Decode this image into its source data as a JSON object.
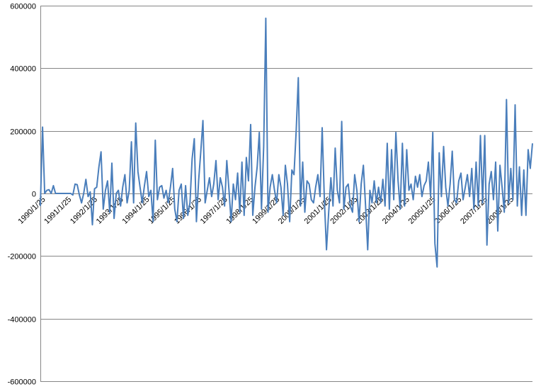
{
  "chart_data": {
    "type": "line",
    "title": "",
    "xlabel": "",
    "ylabel": "",
    "ylim": [
      -600000,
      600000
    ],
    "yticks": [
      600000,
      400000,
      200000,
      0,
      -200000,
      -400000,
      -600000
    ],
    "grid": true,
    "legend": "none",
    "line_color": "#4a7ebb",
    "x_tick_labels": [
      "1990/1/25",
      "1991/1/25",
      "1992/1/25",
      "1993/1/25",
      "1994/1/25",
      "1995/1/25",
      "1996/1/25",
      "1997/1/25",
      "1998/1/25",
      "1999/1/25",
      "2000/1/25",
      "2001/1/25",
      "2002/1/25",
      "2003/1/25",
      "2004/1/25",
      "2005/1/25",
      "2006/1/25",
      "2007/1/25",
      "2008/1/25"
    ],
    "series": [
      {
        "monthly_values_by_year": {
          "1990": [
            -40000,
            212000,
            0,
            10000,
            12000,
            0,
            25000,
            0,
            0,
            0,
            0,
            0
          ],
          "1991": [
            0,
            0,
            0,
            -5000,
            30000,
            28000,
            -5000,
            -30000,
            0,
            45000,
            -10000,
            5000
          ],
          "1992": [
            -100000,
            15000,
            20000,
            85000,
            133000,
            -50000,
            10000,
            40000,
            -60000,
            97000,
            -80000,
            0
          ],
          "1993": [
            10000,
            -40000,
            20000,
            60000,
            -30000,
            10000,
            165000,
            -30000,
            225000,
            70000,
            20000,
            -30000
          ],
          "1994": [
            25000,
            70000,
            -10000,
            10000,
            -90000,
            170000,
            -20000,
            20000,
            25000,
            -15000,
            10000,
            -30000
          ],
          "1995": [
            20000,
            80000,
            -50000,
            -90000,
            10000,
            30000,
            -80000,
            25000,
            -70000,
            -30000,
            110000,
            175000
          ],
          "1996": [
            -90000,
            40000,
            135000,
            233000,
            -30000,
            10000,
            50000,
            -10000,
            30000,
            105000,
            -20000,
            50000
          ],
          "1997": [
            20000,
            -40000,
            105000,
            10000,
            -90000,
            30000,
            -20000,
            65000,
            -60000,
            100000,
            -70000,
            115000
          ],
          "1998": [
            40000,
            220000,
            -70000,
            20000,
            85000,
            195000,
            -50000,
            150000,
            560000,
            -60000,
            20000,
            60000
          ],
          "1999": [
            10000,
            -30000,
            60000,
            20000,
            -70000,
            90000,
            30000,
            -90000,
            75000,
            60000,
            200000,
            370000
          ],
          "2000": [
            -40000,
            100000,
            -60000,
            40000,
            30000,
            -20000,
            -30000,
            20000,
            60000,
            -10000,
            210000,
            -20000
          ],
          "2001": [
            -180000,
            -60000,
            50000,
            -40000,
            145000,
            10000,
            -30000,
            230000,
            -50000,
            20000,
            30000,
            -40000
          ],
          "2002": [
            -60000,
            60000,
            10000,
            -90000,
            30000,
            90000,
            -40000,
            -180000,
            10000,
            -30000,
            40000,
            -30000
          ],
          "2003": [
            20000,
            -30000,
            45000,
            -40000,
            160000,
            -50000,
            140000,
            -20000,
            195000,
            40000,
            -50000,
            160000
          ],
          "2004": [
            -40000,
            140000,
            10000,
            30000,
            -20000,
            55000,
            20000,
            60000,
            -10000,
            25000,
            40000,
            100000
          ],
          "2005": [
            -10000,
            195000,
            -160000,
            -235000,
            130000,
            -10000,
            150000,
            20000,
            -40000,
            30000,
            135000,
            -20000
          ],
          "2006": [
            -30000,
            40000,
            65000,
            -20000,
            20000,
            60000,
            -10000,
            80000,
            -50000,
            100000,
            -40000,
            185000
          ],
          "2007": [
            -30000,
            185000,
            -165000,
            30000,
            70000,
            -20000,
            100000,
            -120000,
            90000,
            20000,
            -60000,
            300000
          ],
          "2008": [
            -30000,
            80000,
            -20000,
            283000,
            -40000,
            85000,
            -70000,
            75000,
            -70000,
            140000,
            80000,
            160000
          ]
        }
      }
    ]
  }
}
